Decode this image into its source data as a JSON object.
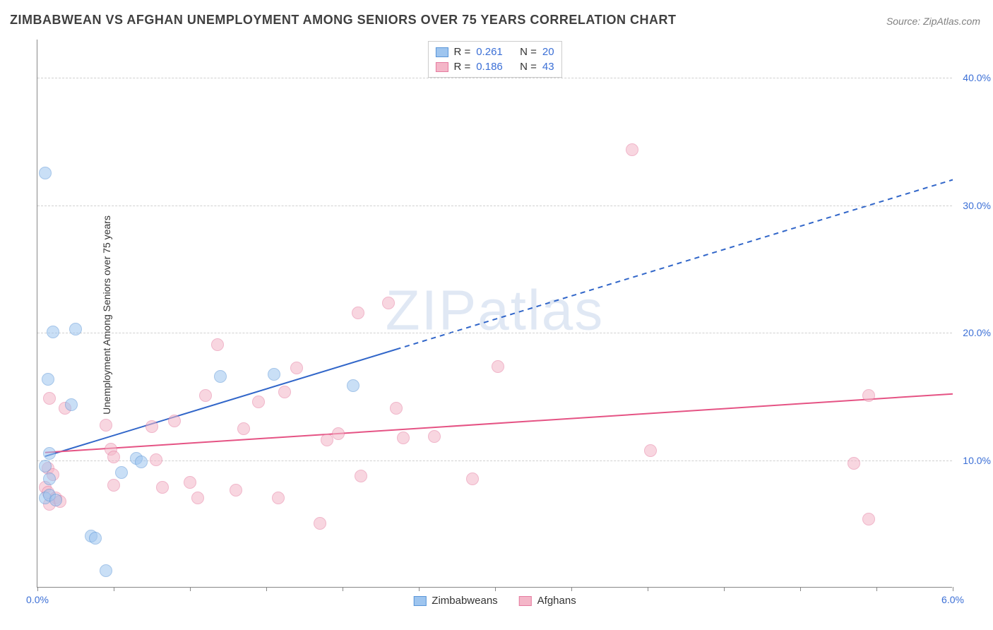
{
  "title": "ZIMBABWEAN VS AFGHAN UNEMPLOYMENT AMONG SENIORS OVER 75 YEARS CORRELATION CHART",
  "source_label": "Source:",
  "source_value": "ZipAtlas.com",
  "watermark_zip": "ZIP",
  "watermark_atlas": "atlas",
  "y_axis_label": "Unemployment Among Seniors over 75 years",
  "chart": {
    "type": "scatter",
    "xlim": [
      0,
      6
    ],
    "ylim": [
      0,
      43
    ],
    "x_ticks": [
      0,
      0.5,
      1.0,
      1.5,
      2.0,
      2.5,
      3.0,
      3.5,
      4.0,
      4.5,
      5.0,
      5.5,
      6.0
    ],
    "x_tick_labels_shown": {
      "0": "0.0%",
      "6": "6.0%"
    },
    "y_gridlines": [
      10,
      20,
      30,
      40
    ],
    "y_tick_labels": {
      "10": "10.0%",
      "20": "20.0%",
      "30": "30.0%",
      "40": "40.0%"
    },
    "background_color": "#ffffff",
    "grid_color": "#d0d0d0",
    "axis_color": "#888888",
    "tick_label_color": "#3b6fd6",
    "series": [
      {
        "name": "Zimbabweans",
        "fill": "#9ec5ef",
        "stroke": "#5a96d8",
        "fill_opacity": 0.55,
        "r_value": "0.261",
        "n_value": "20",
        "trend": {
          "x1": 0.05,
          "y1": 10.3,
          "x2": 6.0,
          "y2": 32.0,
          "solid_until_x": 2.35,
          "color": "#3166c9",
          "width": 2
        },
        "points": [
          [
            0.05,
            32.5
          ],
          [
            0.1,
            20.0
          ],
          [
            0.25,
            20.2
          ],
          [
            0.22,
            14.3
          ],
          [
            0.07,
            16.3
          ],
          [
            0.08,
            10.5
          ],
          [
            0.05,
            9.5
          ],
          [
            0.08,
            8.5
          ],
          [
            0.05,
            7.0
          ],
          [
            0.08,
            7.2
          ],
          [
            0.12,
            6.8
          ],
          [
            0.35,
            4.0
          ],
          [
            0.38,
            3.8
          ],
          [
            0.45,
            1.3
          ],
          [
            0.65,
            10.1
          ],
          [
            0.68,
            9.8
          ],
          [
            0.55,
            9.0
          ],
          [
            1.2,
            16.5
          ],
          [
            1.55,
            16.7
          ],
          [
            2.07,
            15.8
          ]
        ]
      },
      {
        "name": "Afghans",
        "fill": "#f4b6c8",
        "stroke": "#e57ca0",
        "fill_opacity": 0.55,
        "r_value": "0.186",
        "n_value": "43",
        "trend": {
          "x1": 0.05,
          "y1": 10.6,
          "x2": 6.0,
          "y2": 15.2,
          "solid_until_x": 6.0,
          "color": "#e55384",
          "width": 2
        },
        "points": [
          [
            0.08,
            14.8
          ],
          [
            0.18,
            14.0
          ],
          [
            0.07,
            9.3
          ],
          [
            0.1,
            8.8
          ],
          [
            0.05,
            7.8
          ],
          [
            0.07,
            7.4
          ],
          [
            0.12,
            7.0
          ],
          [
            0.08,
            6.5
          ],
          [
            0.15,
            6.7
          ],
          [
            0.45,
            12.7
          ],
          [
            0.48,
            10.8
          ],
          [
            0.5,
            10.2
          ],
          [
            0.5,
            8.0
          ],
          [
            0.75,
            12.6
          ],
          [
            0.78,
            10.0
          ],
          [
            0.82,
            7.8
          ],
          [
            0.9,
            13.0
          ],
          [
            1.0,
            8.2
          ],
          [
            1.05,
            7.0
          ],
          [
            1.1,
            15.0
          ],
          [
            1.18,
            19.0
          ],
          [
            1.3,
            7.6
          ],
          [
            1.35,
            12.4
          ],
          [
            1.45,
            14.5
          ],
          [
            1.62,
            15.3
          ],
          [
            1.7,
            17.2
          ],
          [
            1.58,
            7.0
          ],
          [
            1.85,
            5.0
          ],
          [
            1.9,
            11.5
          ],
          [
            1.97,
            12.0
          ],
          [
            2.1,
            21.5
          ],
          [
            2.12,
            8.7
          ],
          [
            2.3,
            22.3
          ],
          [
            2.35,
            14.0
          ],
          [
            2.4,
            11.7
          ],
          [
            2.6,
            11.8
          ],
          [
            2.85,
            8.5
          ],
          [
            3.02,
            17.3
          ],
          [
            3.9,
            34.3
          ],
          [
            4.02,
            10.7
          ],
          [
            5.35,
            9.7
          ],
          [
            5.45,
            5.3
          ],
          [
            5.45,
            15.0
          ]
        ]
      }
    ],
    "legend_top_labels": {
      "R": "R =",
      "N": "N ="
    },
    "legend_bottom": [
      "Zimbabweans",
      "Afghans"
    ]
  }
}
